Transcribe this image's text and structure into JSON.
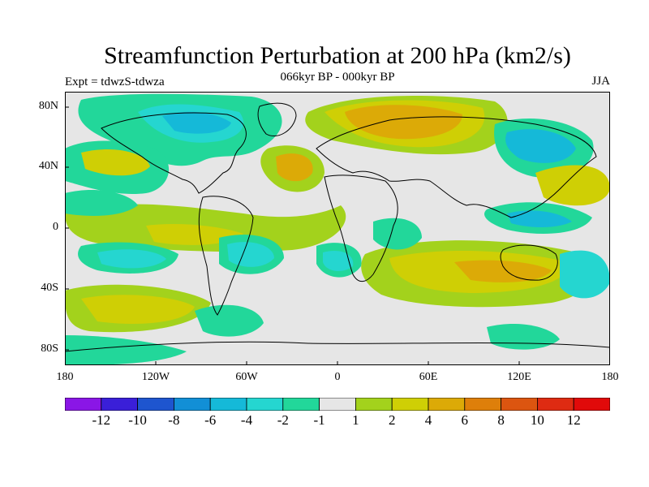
{
  "title": "Streamfunction Perturbation at 200 hPa (km2/s)",
  "subtitle": "066kyr BP - 000kyr BP",
  "experiment": "Expt = tdwzS-tdwza",
  "season": "JJA",
  "latitude_labels": [
    "80N",
    "40N",
    "0",
    "40S",
    "80S"
  ],
  "longitude_labels": [
    "180",
    "120W",
    "60W",
    "0",
    "60E",
    "120E",
    "180"
  ],
  "colorbar": {
    "labels": [
      "-12",
      "-10",
      "-8",
      "-6",
      "-4",
      "-2",
      "-1",
      "1",
      "2",
      "4",
      "6",
      "8",
      "10",
      "12"
    ],
    "colors": [
      "#8a16e6",
      "#3a1fd8",
      "#1e55cf",
      "#128fd6",
      "#15b9d8",
      "#25d6d0",
      "#22d79a",
      "#e6e6e6",
      "#a3d21c",
      "#cfcf05",
      "#dcaa07",
      "#de7f0a",
      "#dc5510",
      "#de2b12",
      "#e10a0a"
    ]
  }
}
